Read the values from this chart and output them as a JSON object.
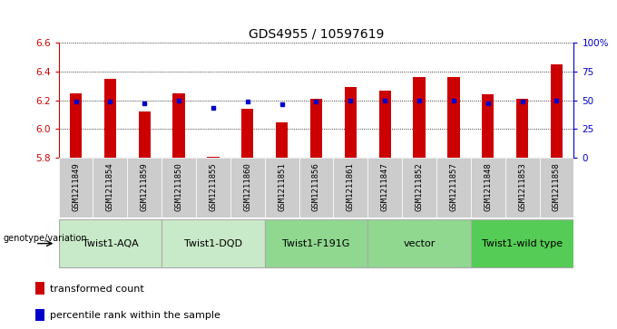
{
  "title": "GDS4955 / 10597619",
  "samples": [
    "GSM1211849",
    "GSM1211854",
    "GSM1211859",
    "GSM1211850",
    "GSM1211855",
    "GSM1211860",
    "GSM1211851",
    "GSM1211856",
    "GSM1211861",
    "GSM1211847",
    "GSM1211852",
    "GSM1211857",
    "GSM1211848",
    "GSM1211853",
    "GSM1211858"
  ],
  "red_values": [
    6.25,
    6.35,
    6.12,
    6.25,
    5.81,
    6.14,
    6.05,
    6.21,
    6.29,
    6.27,
    6.36,
    6.36,
    6.24,
    6.21,
    6.45
  ],
  "blue_values": [
    6.19,
    6.19,
    6.18,
    6.2,
    6.15,
    6.19,
    6.17,
    6.19,
    6.2,
    6.2,
    6.2,
    6.2,
    6.18,
    6.19,
    6.2
  ],
  "ymin": 5.8,
  "ymax": 6.6,
  "yticks": [
    5.8,
    6.0,
    6.2,
    6.4,
    6.6
  ],
  "right_yticks": [
    0,
    25,
    50,
    75,
    100
  ],
  "right_ytick_labels": [
    "0",
    "25",
    "50",
    "75",
    "100%"
  ],
  "groups": [
    {
      "label": "Twist1-AQA",
      "start": 0,
      "end": 3,
      "color": "#c8eac8"
    },
    {
      "label": "Twist1-DQD",
      "start": 3,
      "end": 6,
      "color": "#c8eac8"
    },
    {
      "label": "Twist1-F191G",
      "start": 6,
      "end": 9,
      "color": "#90d890"
    },
    {
      "label": "vector",
      "start": 9,
      "end": 12,
      "color": "#90d890"
    },
    {
      "label": "Twist1-wild type",
      "start": 12,
      "end": 15,
      "color": "#55cc55"
    }
  ],
  "bar_color": "#cc0000",
  "dot_color": "#0000cc",
  "bar_width": 0.35,
  "legend_items": [
    {
      "color": "#cc0000",
      "label": "transformed count"
    },
    {
      "color": "#0000cc",
      "label": "percentile rank within the sample"
    }
  ],
  "genotype_label": "genotype/variation",
  "ylabel_color": "#cc0000",
  "right_ylabel_color": "#0000cc",
  "sample_bg_color": "#cccccc",
  "title_fontsize": 10,
  "tick_fontsize": 7.5,
  "legend_fontsize": 8,
  "group_fontsize": 8
}
